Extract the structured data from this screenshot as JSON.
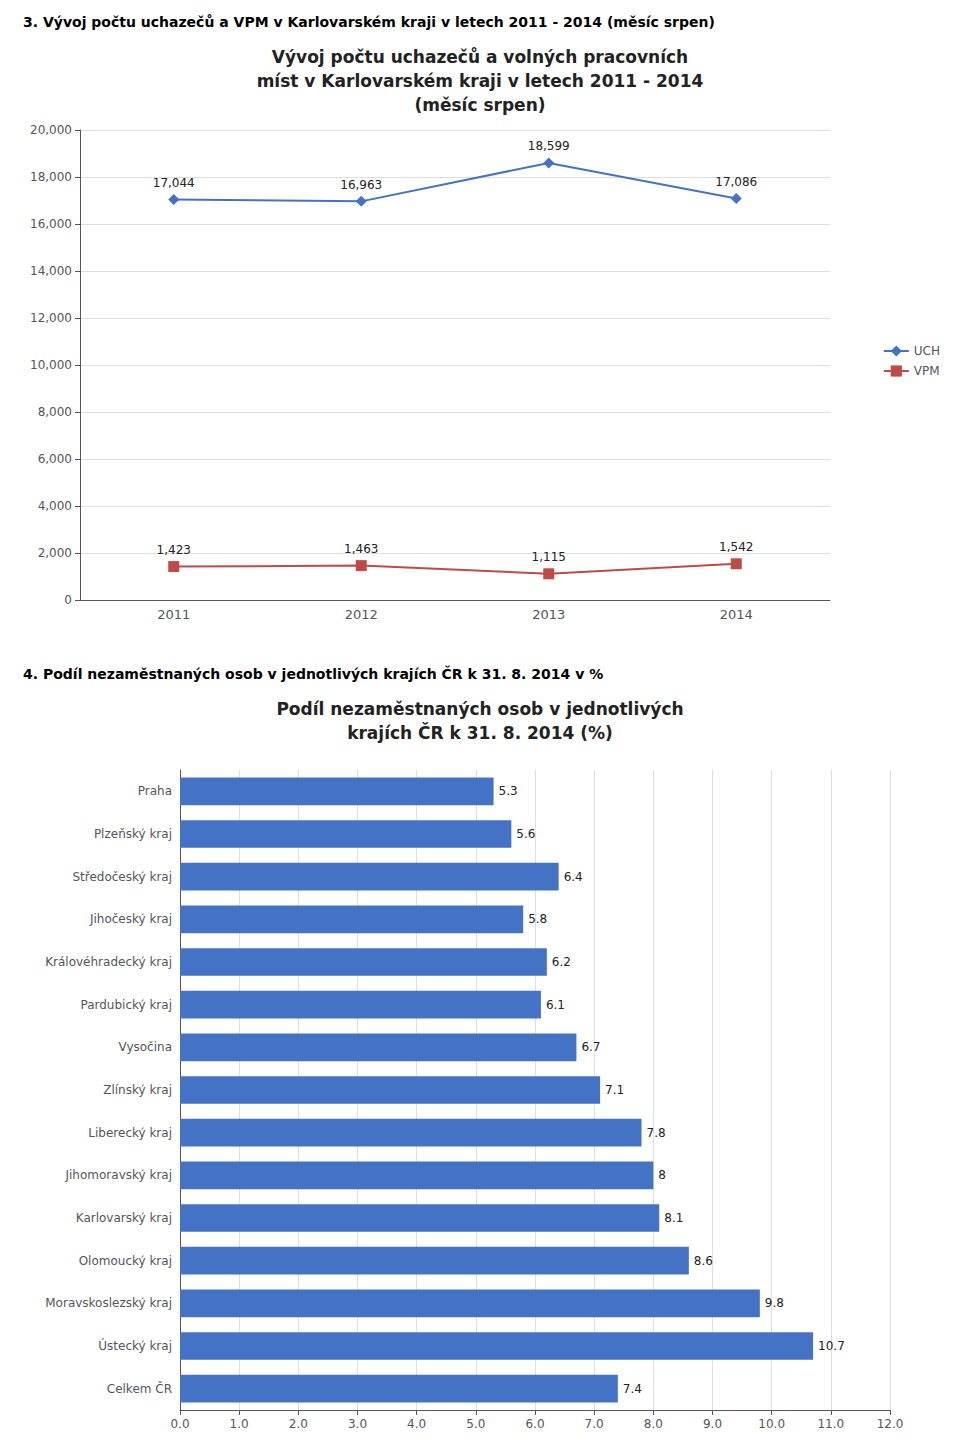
{
  "chart_data": [
    {
      "type": "line",
      "annotations": [
        "3. Vývoj počtu uchazečů a VPM v Karlovarském kraji v letech 2011 - 2014 (měsíc srpen)"
      ],
      "title": "Vývoj počtu uchazečů a volných pracovních\nmíst v Karlovarském kraji v letech 2011 - 2014\n(měsíc srpen)",
      "categories": [
        "2011",
        "2012",
        "2013",
        "2014"
      ],
      "series": [
        {
          "name": "UCH",
          "color": "#4472C4",
          "marker": "diamond",
          "values": [
            17044,
            16963,
            18599,
            17086
          ],
          "value_labels": [
            "17,044",
            "16,963",
            "18,599",
            "17,086"
          ]
        },
        {
          "name": "VPM",
          "color": "#BE4B48",
          "marker": "square",
          "values": [
            1423,
            1463,
            1115,
            1542
          ],
          "value_labels": [
            "1,423",
            "1,463",
            "1,115",
            "1,542"
          ]
        }
      ],
      "ylim": [
        0,
        20000
      ],
      "yticks": [
        0,
        {
          "value": 2000,
          "label": "2,000"
        },
        {
          "value": 4000,
          "label": "4,000"
        },
        {
          "value": 6000,
          "label": "6,000"
        },
        {
          "value": 8000,
          "label": "8,000"
        },
        {
          "value": 10000,
          "label": "10,000"
        },
        {
          "value": 12000,
          "label": "12,000"
        },
        {
          "value": 14000,
          "label": "14,000"
        },
        {
          "value": 16000,
          "label": "16,000"
        },
        {
          "value": 18000,
          "label": "18,000"
        },
        {
          "value": 20000,
          "label": "20,000"
        }
      ],
      "grid": true,
      "legend": "right",
      "data_labels": true
    },
    {
      "type": "bar",
      "orientation": "horizontal",
      "annotations": [
        "4. Podíl nezaměstnaných osob v jednotlivých krajích ČR k 31. 8. 2014 v %"
      ],
      "title": "Podíl nezaměstnaných osob v jednotlivých\nkrajích ČR k 31. 8. 2014 (%)",
      "categories": [
        "Praha",
        "Plzeňský kraj",
        "Středočeský kraj",
        "Jihočeský kraj",
        "Královéhradecký kraj",
        "Pardubický kraj",
        "Vysočina",
        "Zlínský kraj",
        "Liberecký kraj",
        "Jihomoravský kraj",
        "Karlovarský kraj",
        "Olomoucký kraj",
        "Moravskoslezský kraj",
        "Ústecký kraj",
        "Celkem ČR"
      ],
      "values": [
        5.3,
        5.6,
        6.4,
        5.8,
        6.2,
        6.1,
        6.7,
        7.1,
        7.8,
        8.0,
        8.1,
        8.6,
        9.8,
        10.7,
        7.4
      ],
      "value_labels": [
        "5.3",
        "5.6",
        "6.4",
        "5.8",
        "6.2",
        "6.1",
        "6.7",
        "7.1",
        "7.8",
        "8",
        "8.1",
        "8.6",
        "9.8",
        "10.7",
        "7.4"
      ],
      "color": "#4472C4",
      "xlim": [
        0,
        12
      ],
      "xticks": [
        {
          "value": 0,
          "label": "0.0"
        },
        {
          "value": 1,
          "label": "1.0"
        },
        {
          "value": 2,
          "label": "2.0"
        },
        {
          "value": 3,
          "label": "3.0"
        },
        {
          "value": 4,
          "label": "4.0"
        },
        {
          "value": 5,
          "label": "5.0"
        },
        {
          "value": 6,
          "label": "6.0"
        },
        {
          "value": 7,
          "label": "7.0"
        },
        {
          "value": 8,
          "label": "8.0"
        },
        {
          "value": 9,
          "label": "9.0"
        },
        {
          "value": 10,
          "label": "10.0"
        },
        {
          "value": 11,
          "label": "11.0"
        },
        {
          "value": 12,
          "label": "12.0"
        }
      ],
      "grid": true,
      "data_labels": true
    }
  ]
}
